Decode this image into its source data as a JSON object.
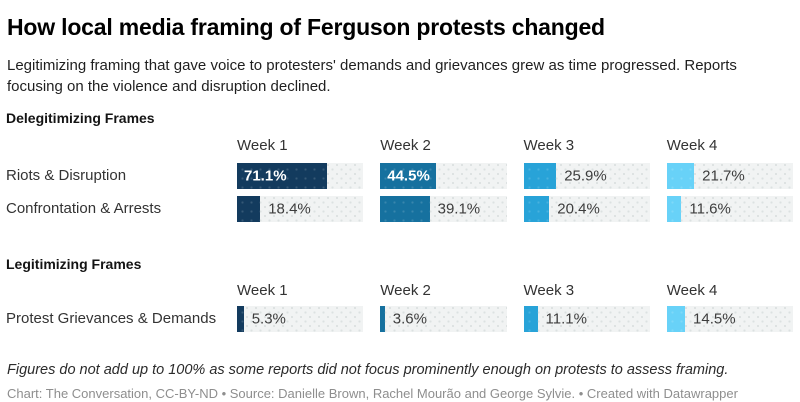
{
  "header": {
    "title": "How local media framing of Ferguson protests changed",
    "subtitle": "Legitimizing framing that gave voice to protesters' demands and grievances grew as time progressed. Reports focusing on the violence and disruption declined."
  },
  "chart_data": {
    "type": "bar",
    "orientation": "horizontal",
    "unit": "%",
    "scale_max": 100,
    "columns": [
      "Week 1",
      "Week 2",
      "Week 3",
      "Week 4"
    ],
    "colors": [
      "#133b5e",
      "#16719f",
      "#28a3d8",
      "#68d2f8"
    ],
    "track_color": "#f1f3f3",
    "legend_position": "none",
    "grid": "off",
    "sections": [
      {
        "title": "Delegitimizing Frames",
        "rows": [
          {
            "label": "Riots & Disruption",
            "values": [
              71.1,
              44.5,
              25.9,
              21.7
            ],
            "labels": [
              "71.1%",
              "44.5%",
              "25.9%",
              "21.7%"
            ]
          },
          {
            "label": "Confrontation & Arrests",
            "values": [
              18.4,
              39.1,
              20.4,
              11.6
            ],
            "labels": [
              "18.4%",
              "39.1%",
              "20.4%",
              "11.6%"
            ]
          }
        ]
      },
      {
        "title": "Legitimizing Frames",
        "rows": [
          {
            "label": "Protest Grievances & Demands",
            "values": [
              5.3,
              3.6,
              11.1,
              14.5
            ],
            "labels": [
              "5.3%",
              "3.6%",
              "11.1%",
              "14.5%"
            ]
          }
        ]
      }
    ]
  },
  "footer": {
    "note": "Figures do not add up to 100% as some reports did not focus prominently enough on protests to assess framing.",
    "credit": "Chart: The Conversation, CC-BY-ND • Source: Danielle Brown, Rachel Mourão and George Sylvie. • Created with Datawrapper"
  }
}
